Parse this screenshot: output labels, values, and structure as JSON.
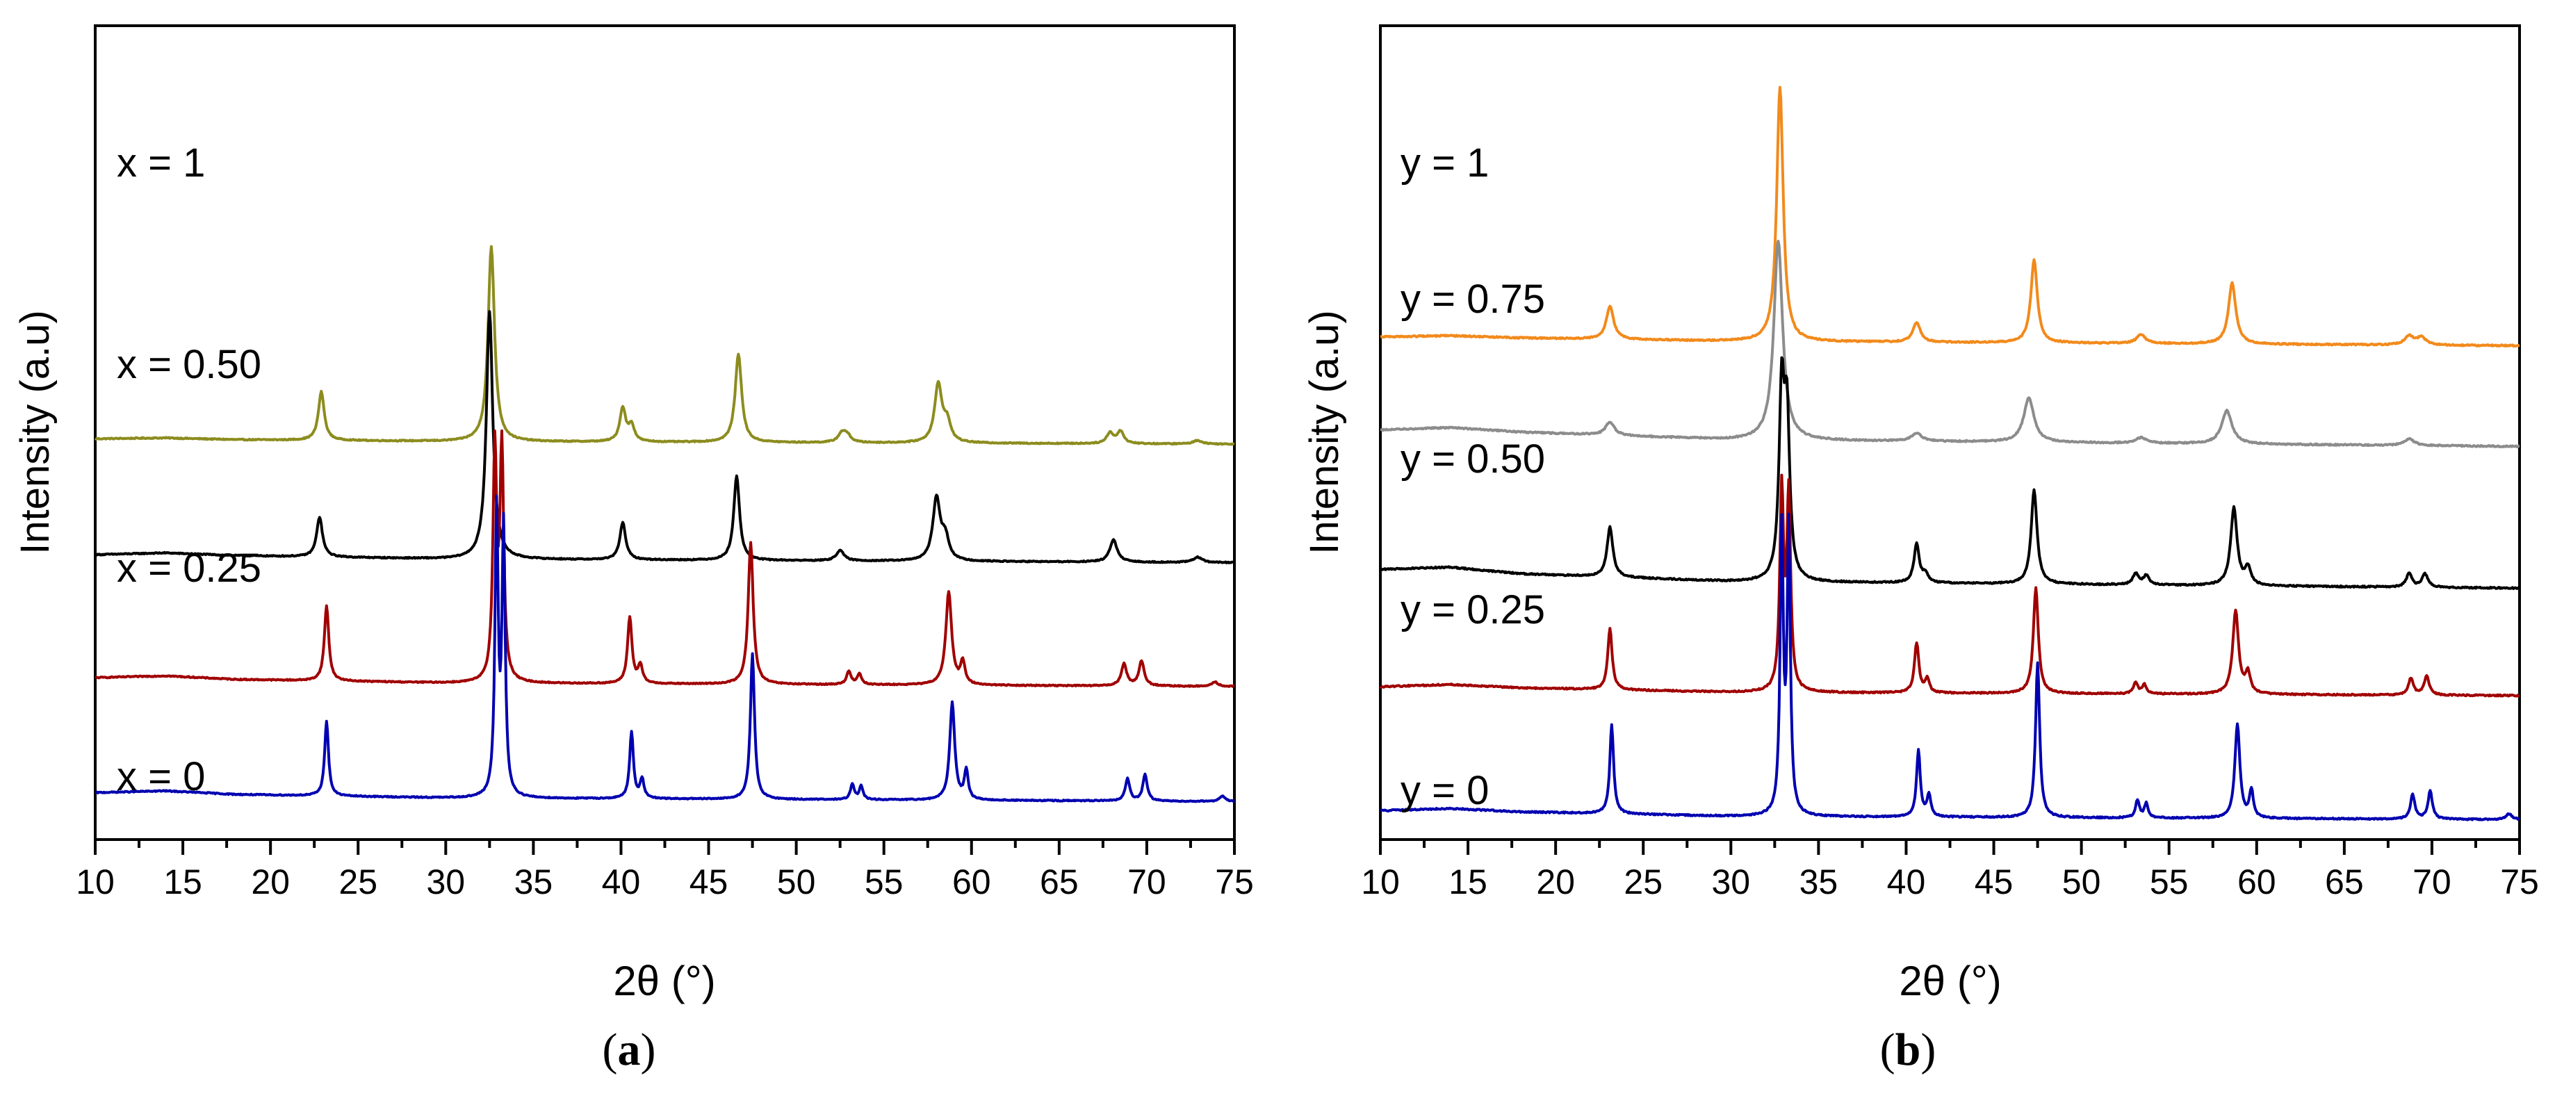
{
  "chart_data": [
    {
      "type": "line",
      "panel_label": "(a)",
      "panel_letter": "a",
      "title": "",
      "xlabel": "2θ (°)",
      "ylabel": "Intensity (a.u)",
      "xlim": [
        10,
        75
      ],
      "x_ticks": [
        "10",
        "15",
        "20",
        "25",
        "30",
        "35",
        "40",
        "45",
        "50",
        "55",
        "60",
        "65",
        "70",
        "75"
      ],
      "grid": false,
      "series": [
        {
          "name": "x = 1",
          "color": "#8c8c1f",
          "baseline": 4.4,
          "scale": 1.0,
          "noise": 0.012,
          "background": [
            [
              10,
              0.03
            ],
            [
              14,
              0.04
            ],
            [
              18,
              0.02
            ],
            [
              30,
              0.0
            ],
            [
              75,
              -0.03
            ]
          ],
          "peaks": [
            [
              22.9,
              0.55,
              0.2
            ],
            [
              32.6,
              2.2,
              0.22
            ],
            [
              40.1,
              0.38,
              0.2
            ],
            [
              40.6,
              0.18,
              0.2
            ],
            [
              46.7,
              1.0,
              0.22
            ],
            [
              52.6,
              0.1,
              0.25
            ],
            [
              52.9,
              0.08,
              0.25
            ],
            [
              58.1,
              0.65,
              0.25
            ],
            [
              58.6,
              0.22,
              0.25
            ],
            [
              67.9,
              0.12,
              0.22
            ],
            [
              68.5,
              0.14,
              0.22
            ],
            [
              72.9,
              0.04,
              0.3
            ]
          ]
        },
        {
          "name": "x = 0.50",
          "color": "#000000",
          "baseline": 3.05,
          "scale": 1.0,
          "noise": 0.012,
          "background": [
            [
              10,
              0.07
            ],
            [
              14,
              0.09
            ],
            [
              18,
              0.06
            ],
            [
              30,
              0.02
            ],
            [
              75,
              -0.02
            ]
          ],
          "peaks": [
            [
              22.8,
              0.45,
              0.2
            ],
            [
              32.5,
              2.8,
              0.22
            ],
            [
              40.1,
              0.42,
              0.2
            ],
            [
              46.6,
              0.95,
              0.2
            ],
            [
              52.5,
              0.12,
              0.25
            ],
            [
              58.0,
              0.7,
              0.25
            ],
            [
              58.5,
              0.25,
              0.25
            ],
            [
              68.1,
              0.25,
              0.25
            ],
            [
              72.9,
              0.06,
              0.3
            ]
          ]
        },
        {
          "name": "x = 0.25",
          "color": "#a00000",
          "baseline": 1.65,
          "scale": 1.0,
          "noise": 0.012,
          "background": [
            [
              10,
              0.08
            ],
            [
              14,
              0.1
            ],
            [
              18,
              0.06
            ],
            [
              30,
              0.02
            ],
            [
              75,
              -0.02
            ]
          ],
          "peaks": [
            [
              23.2,
              0.85,
              0.15
            ],
            [
              32.8,
              2.6,
              0.13
            ],
            [
              33.2,
              2.6,
              0.13
            ],
            [
              40.5,
              0.75,
              0.15
            ],
            [
              41.1,
              0.2,
              0.15
            ],
            [
              47.4,
              1.6,
              0.17
            ],
            [
              53.0,
              0.15,
              0.15
            ],
            [
              53.6,
              0.12,
              0.15
            ],
            [
              58.7,
              1.05,
              0.2
            ],
            [
              59.5,
              0.25,
              0.15
            ],
            [
              68.7,
              0.25,
              0.18
            ],
            [
              69.7,
              0.28,
              0.18
            ],
            [
              73.9,
              0.05,
              0.2
            ]
          ]
        },
        {
          "name": "x = 0",
          "color": "#0000b0",
          "baseline": 0.35,
          "scale": 1.0,
          "noise": 0.012,
          "background": [
            [
              10,
              0.08
            ],
            [
              14,
              0.1
            ],
            [
              18,
              0.06
            ],
            [
              30,
              0.02
            ],
            [
              75,
              -0.02
            ]
          ],
          "peaks": [
            [
              23.2,
              0.85,
              0.13
            ],
            [
              32.9,
              3.2,
              0.11
            ],
            [
              33.3,
              3.0,
              0.11
            ],
            [
              40.6,
              0.75,
              0.13
            ],
            [
              41.2,
              0.22,
              0.13
            ],
            [
              47.5,
              1.65,
              0.14
            ],
            [
              53.2,
              0.17,
              0.13
            ],
            [
              53.7,
              0.15,
              0.13
            ],
            [
              58.9,
              1.1,
              0.17
            ],
            [
              59.7,
              0.33,
              0.13
            ],
            [
              68.9,
              0.25,
              0.15
            ],
            [
              69.9,
              0.3,
              0.15
            ],
            [
              74.3,
              0.06,
              0.2
            ]
          ]
        }
      ]
    },
    {
      "type": "line",
      "panel_label": "(b)",
      "panel_letter": "b",
      "title": "",
      "xlabel": "2θ (°)",
      "ylabel": "Intensity (a.u)",
      "xlim": [
        10,
        75
      ],
      "x_ticks": [
        "10",
        "15",
        "20",
        "25",
        "30",
        "35",
        "40",
        "45",
        "50",
        "55",
        "60",
        "65",
        "70",
        "75"
      ],
      "grid": false,
      "series": [
        {
          "name": "y = 1",
          "color": "#f28a1c",
          "baseline": 4.4,
          "scale": 1.0,
          "noise": 0.012,
          "background": [
            [
              10,
              0.04
            ],
            [
              14,
              0.05
            ],
            [
              18,
              0.03
            ],
            [
              30,
              0.0
            ],
            [
              75,
              -0.04
            ]
          ],
          "peaks": [
            [
              23.1,
              0.3,
              0.25
            ],
            [
              32.8,
              2.3,
              0.22
            ],
            [
              40.6,
              0.18,
              0.25
            ],
            [
              47.3,
              0.75,
              0.22
            ],
            [
              53.4,
              0.08,
              0.3
            ],
            [
              58.6,
              0.55,
              0.25
            ],
            [
              68.7,
              0.08,
              0.3
            ],
            [
              69.4,
              0.07,
              0.3
            ]
          ]
        },
        {
          "name": "y = 0.75",
          "color": "#8c8c8c",
          "baseline": 3.48,
          "scale": 1.0,
          "noise": 0.012,
          "background": [
            [
              10,
              0.12
            ],
            [
              14,
              0.14
            ],
            [
              18,
              0.1
            ],
            [
              30,
              0.03
            ],
            [
              75,
              -0.03
            ]
          ],
          "peaks": [
            [
              23.1,
              0.12,
              0.3
            ],
            [
              32.7,
              1.8,
              0.3
            ],
            [
              40.6,
              0.07,
              0.35
            ],
            [
              47.0,
              0.4,
              0.35
            ],
            [
              53.4,
              0.05,
              0.35
            ],
            [
              58.3,
              0.3,
              0.35
            ],
            [
              68.7,
              0.06,
              0.35
            ]
          ]
        },
        {
          "name": "y = 0.50",
          "color": "#000000",
          "baseline": 2.2,
          "scale": 1.0,
          "noise": 0.012,
          "background": [
            [
              10,
              0.14
            ],
            [
              14,
              0.16
            ],
            [
              18,
              0.1
            ],
            [
              30,
              0.03
            ],
            [
              75,
              -0.03
            ]
          ],
          "peaks": [
            [
              23.1,
              0.45,
              0.2
            ],
            [
              32.9,
              1.65,
              0.18
            ],
            [
              33.2,
              1.4,
              0.18
            ],
            [
              40.6,
              0.35,
              0.18
            ],
            [
              41.1,
              0.08,
              0.18
            ],
            [
              47.3,
              0.85,
              0.2
            ],
            [
              53.1,
              0.1,
              0.2
            ],
            [
              53.7,
              0.08,
              0.2
            ],
            [
              58.7,
              0.7,
              0.22
            ],
            [
              59.5,
              0.15,
              0.2
            ],
            [
              68.7,
              0.12,
              0.2
            ],
            [
              69.6,
              0.12,
              0.2
            ]
          ]
        },
        {
          "name": "y = 0.25",
          "color": "#a00000",
          "baseline": 1.22,
          "scale": 1.0,
          "noise": 0.012,
          "background": [
            [
              10,
              0.06
            ],
            [
              14,
              0.08
            ],
            [
              18,
              0.05
            ],
            [
              30,
              0.01
            ],
            [
              75,
              -0.02
            ]
          ],
          "peaks": [
            [
              23.1,
              0.55,
              0.15
            ],
            [
              32.9,
              1.8,
              0.13
            ],
            [
              33.3,
              1.75,
              0.13
            ],
            [
              40.6,
              0.45,
              0.15
            ],
            [
              41.2,
              0.12,
              0.15
            ],
            [
              47.4,
              0.95,
              0.17
            ],
            [
              53.1,
              0.1,
              0.15
            ],
            [
              53.6,
              0.08,
              0.15
            ],
            [
              58.8,
              0.75,
              0.2
            ],
            [
              59.5,
              0.18,
              0.17
            ],
            [
              68.8,
              0.15,
              0.17
            ],
            [
              69.7,
              0.17,
              0.17
            ]
          ]
        },
        {
          "name": "y = 0",
          "color": "#0000b0",
          "baseline": 0.1,
          "scale": 1.0,
          "noise": 0.012,
          "background": [
            [
              10,
              0.06
            ],
            [
              14,
              0.08
            ],
            [
              18,
              0.05
            ],
            [
              30,
              0.01
            ],
            [
              75,
              -0.02
            ]
          ],
          "peaks": [
            [
              23.2,
              0.8,
              0.13
            ],
            [
              32.9,
              2.55,
              0.11
            ],
            [
              33.3,
              2.55,
              0.11
            ],
            [
              40.7,
              0.6,
              0.13
            ],
            [
              41.3,
              0.2,
              0.13
            ],
            [
              47.5,
              1.4,
              0.14
            ],
            [
              53.2,
              0.16,
              0.13
            ],
            [
              53.7,
              0.13,
              0.13
            ],
            [
              58.9,
              0.85,
              0.17
            ],
            [
              59.7,
              0.25,
              0.13
            ],
            [
              68.9,
              0.22,
              0.15
            ],
            [
              69.9,
              0.25,
              0.15
            ],
            [
              74.4,
              0.05,
              0.2
            ]
          ]
        }
      ]
    }
  ]
}
